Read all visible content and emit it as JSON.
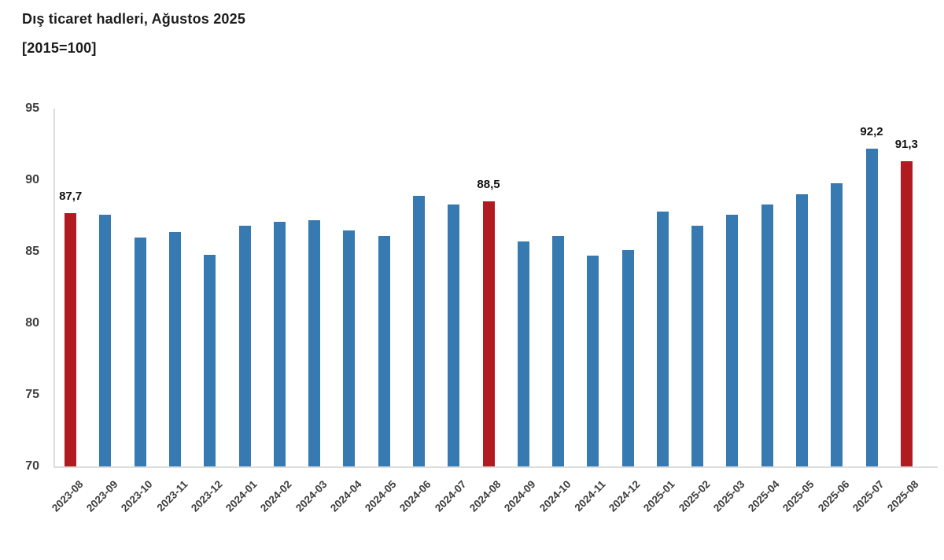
{
  "title": {
    "line1": "Dış ticaret hadleri, Ağustos 2025",
    "line2": "[2015=100]"
  },
  "chart_data": {
    "type": "bar",
    "title": "Dış ticaret hadleri, Ağustos 2025",
    "subtitle": "[2015=100]",
    "xlabel": "",
    "ylabel": "",
    "categories": [
      "2023-08",
      "2023-09",
      "2023-10",
      "2023-11",
      "2023-12",
      "2024-01",
      "2024-02",
      "2024-03",
      "2024-04",
      "2024-05",
      "2024-06",
      "2024-07",
      "2024-08",
      "2024-09",
      "2024-10",
      "2024-11",
      "2024-12",
      "2025-01",
      "2025-02",
      "2025-03",
      "2025-04",
      "2025-05",
      "2025-06",
      "2025-07",
      "2025-08"
    ],
    "values": [
      87.7,
      87.6,
      86.0,
      86.4,
      84.8,
      86.8,
      87.1,
      87.2,
      86.5,
      86.1,
      88.9,
      88.3,
      88.5,
      85.7,
      86.1,
      84.7,
      85.1,
      87.8,
      86.8,
      87.6,
      88.3,
      89.0,
      89.8,
      92.2,
      91.3
    ],
    "highlight_indices": [
      0,
      12,
      24
    ],
    "point_labels": [
      {
        "index": 0,
        "text": "87,7"
      },
      {
        "index": 12,
        "text": "88,5"
      },
      {
        "index": 23,
        "text": "92,2"
      },
      {
        "index": 24,
        "text": "91,3"
      }
    ],
    "ylim": [
      70,
      95
    ],
    "yticks": [
      95,
      90,
      85,
      80,
      75,
      70
    ],
    "grid": false,
    "legend_position": "none",
    "colors": {
      "bar_default": "#3779b1",
      "bar_highlight": "#b11a21",
      "axis_line": "#dcdcdc",
      "tick_text": "#3f3f3f",
      "title_text": "#1c1c1c",
      "label_text": "#111111",
      "background": "#ffffff"
    }
  }
}
